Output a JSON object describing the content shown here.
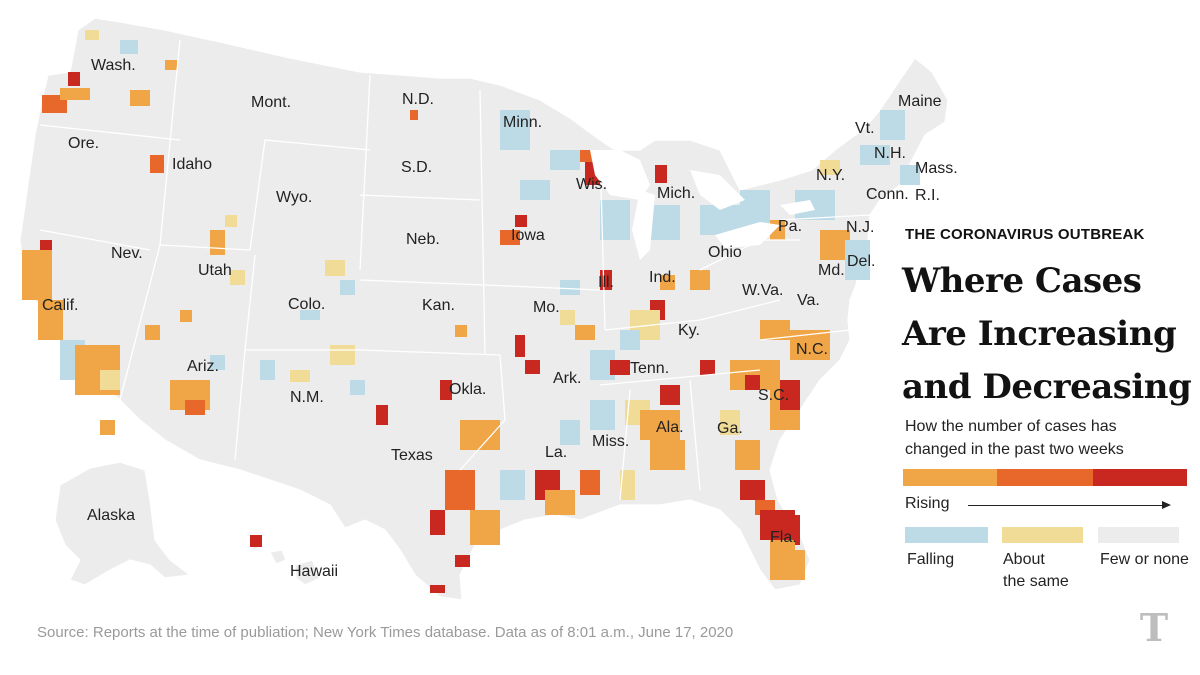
{
  "header": {
    "kicker": "THE CORONAVIRUS OUTBREAK",
    "title_line1": "Where Cases",
    "title_line2": "Are Increasing",
    "title_line3": "and Decreasing",
    "subtitle_line1": "How the number of cases has",
    "subtitle_line2": "changed in the past two weeks"
  },
  "legend": {
    "rising_label": "Rising",
    "falling_label": "Falling",
    "same_line1": "About",
    "same_line2": "the same",
    "none_label": "Few or none",
    "colors": {
      "rising_light": "#f0a646",
      "rising_mid": "#e8682b",
      "rising_dark": "#c8281f",
      "falling": "#bcdbe6",
      "same": "#f0dc97",
      "none": "#ececec"
    }
  },
  "states": {
    "wash": "Wash.",
    "ore": "Ore.",
    "calif": "Calif.",
    "nev": "Nev.",
    "idaho": "Idaho",
    "mont": "Mont.",
    "wyo": "Wyo.",
    "utah": "Utah",
    "ariz": "Ariz.",
    "colo": "Colo.",
    "nm": "N.M.",
    "nd": "N.D.",
    "sd": "S.D.",
    "neb": "Neb.",
    "kan": "Kan.",
    "okla": "Okla.",
    "texas": "Texas",
    "minn": "Minn.",
    "iowa": "Iowa",
    "mo": "Mo.",
    "ark": "Ark.",
    "la": "La.",
    "wis": "Wis.",
    "ill": "Ill.",
    "mich": "Mich.",
    "ind": "Ind.",
    "ohio": "Ohio",
    "ky": "Ky.",
    "tenn": "Tenn.",
    "miss": "Miss.",
    "ala": "Ala.",
    "ga": "Ga.",
    "fla": "Fla.",
    "sc": "S.C.",
    "nc": "N.C.",
    "va": "Va.",
    "wva": "W.Va.",
    "md": "Md.",
    "del": "Del.",
    "nj": "N.J.",
    "pa": "Pa.",
    "ny": "N.Y.",
    "conn": "Conn.",
    "ri": "R.I.",
    "mass": "Mass.",
    "nh": "N.H.",
    "vt": "Vt.",
    "maine": "Maine",
    "alaska": "Alaska",
    "hawaii": "Hawaii"
  },
  "source": "Source: Reports at the time of publiation; New York Times database. Data as of 8:01 a.m., June 17, 2020",
  "logo_icon": "nyt-t-logo-icon"
}
